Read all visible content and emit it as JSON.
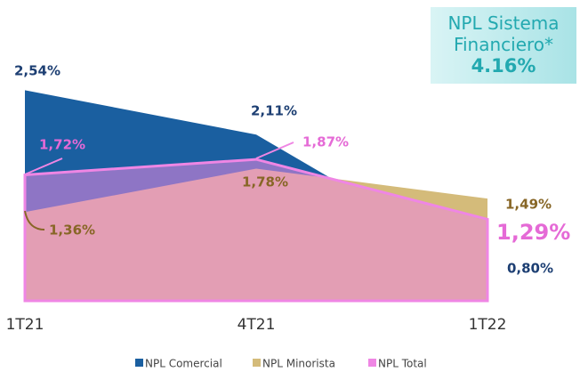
{
  "chart_data": {
    "type": "area",
    "categories": [
      "1T21",
      "4T21",
      "1T22"
    ],
    "series": [
      {
        "name": "NPL Comercial",
        "color": "#1a5fa0",
        "label_color": "#1d3f73",
        "values": [
          2.54,
          2.11,
          0.8
        ],
        "value_labels": [
          "2,54%",
          "2,11%",
          "0,80%"
        ]
      },
      {
        "name": "NPL Minorista",
        "color": "#d4bb7a",
        "label_color": "#876626",
        "values": [
          1.36,
          1.78,
          1.49
        ],
        "value_labels": [
          "1,36%",
          "1,78%",
          "1,49%"
        ]
      },
      {
        "name": "NPL Total",
        "color": "#ef86e4",
        "label_color": "#e56ad6",
        "values": [
          1.72,
          1.87,
          1.29
        ],
        "value_labels": [
          "1,72%",
          "1,87%",
          "1,29%"
        ]
      }
    ],
    "ylim": [
      0.5,
      2.9
    ],
    "annotation": {
      "text": "NPL Sistema Financiero*",
      "value": "4.16%"
    }
  }
}
